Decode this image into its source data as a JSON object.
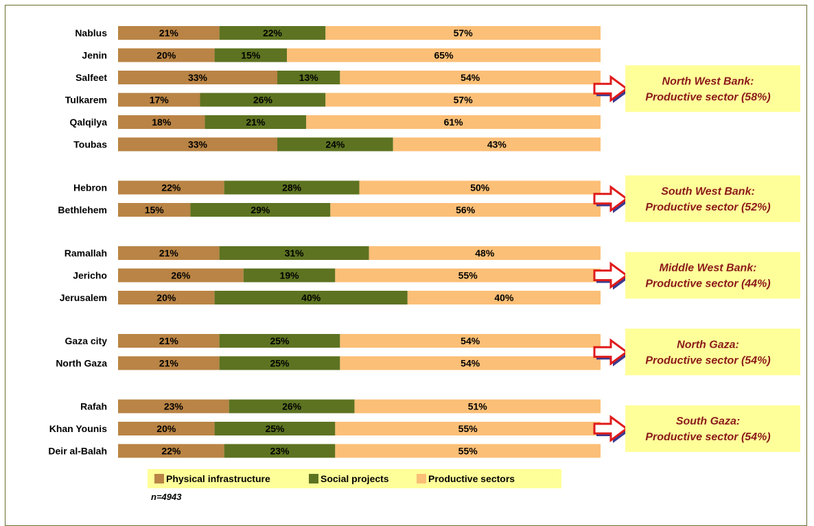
{
  "chart_data": {
    "type": "bar",
    "orientation": "horizontal",
    "stacked": "percent",
    "categories": [
      "Nablus",
      "Jenin",
      "Salfeet",
      "Tulkarem",
      "Qalqilya",
      "Toubas",
      "Hebron",
      "Bethlehem",
      "Ramallah",
      "Jericho",
      "Jerusalem",
      "Gaza city",
      "North Gaza",
      "Rafah",
      "Khan Younis",
      "Deir al-Balah"
    ],
    "groups": [
      [
        "Nablus",
        "Jenin",
        "Salfeet",
        "Tulkarem",
        "Qalqilya",
        "Toubas"
      ],
      [
        "Hebron",
        "Bethlehem"
      ],
      [
        "Ramallah",
        "Jericho",
        "Jerusalem"
      ],
      [
        "Gaza city",
        "North Gaza"
      ],
      [
        "Rafah",
        "Khan Younis",
        "Deir al-Balah"
      ]
    ],
    "series": [
      {
        "name": "Physical infrastructure",
        "color": "#b98445",
        "values": [
          21,
          20,
          33,
          17,
          18,
          33,
          22,
          15,
          21,
          26,
          20,
          21,
          21,
          23,
          20,
          22
        ]
      },
      {
        "name": "Social projects",
        "color": "#5d7321",
        "values": [
          22,
          15,
          13,
          26,
          21,
          24,
          28,
          29,
          31,
          19,
          40,
          25,
          25,
          26,
          25,
          23
        ]
      },
      {
        "name": "Productive sectors",
        "color": "#fbbf77",
        "values": [
          57,
          65,
          54,
          57,
          61,
          43,
          50,
          56,
          48,
          55,
          40,
          54,
          54,
          51,
          55,
          55
        ]
      }
    ],
    "value_format": "{v}%",
    "xlim": [
      0,
      100
    ],
    "grid": false,
    "legend": {
      "placement": "bottom"
    },
    "note": "n=4943",
    "annotations": [
      {
        "line1": "North West Bank:",
        "line2": "Productive sector (58%)"
      },
      {
        "line1": "South West Bank:",
        "line2": "Productive sector (52%)"
      },
      {
        "line1": "Middle West Bank:",
        "line2": "Productive sector (44%)"
      },
      {
        "line1": "North Gaza:",
        "line2": "Productive sector (54%)"
      },
      {
        "line1": "South Gaza:",
        "line2": "Productive sector (54%)"
      }
    ],
    "colors": {
      "callout_bg": "#ffff99",
      "callout_text": "#8b1a1a",
      "arrow_fill": "#ffffff",
      "arrow_stroke": "#e01a1a",
      "arrow_shadow": "#3b3b8f",
      "legend_bg": "#ffff99"
    }
  }
}
